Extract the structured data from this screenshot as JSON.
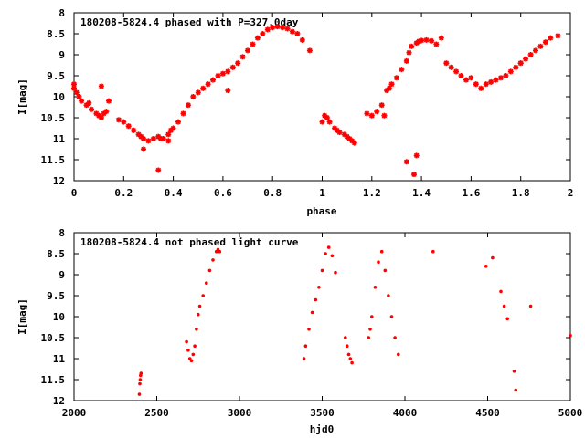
{
  "chart_data": [
    {
      "type": "scatter",
      "title": "180208-5824.4 phased with P=327.0day",
      "xlabel": "phase",
      "ylabel": "I[mag]",
      "xlim": [
        0,
        2
      ],
      "ylim": [
        12,
        8
      ],
      "y_inverted": true,
      "xticks": [
        "0",
        "0.2",
        "0.4",
        "0.6",
        "0.8",
        "1",
        "1.2",
        "1.4",
        "1.6",
        "1.8",
        "2"
      ],
      "yticks": [
        "8",
        "8.5",
        "9",
        "9.5",
        "10",
        "10.5",
        "11",
        "11.5",
        "12"
      ],
      "grid": false,
      "marker": "star",
      "color": "#ff0000",
      "x": [
        0.0,
        0.01,
        0.02,
        0.03,
        0.05,
        0.06,
        0.07,
        0.09,
        0.1,
        0.11,
        0.12,
        0.13,
        0.18,
        0.2,
        0.22,
        0.24,
        0.26,
        0.27,
        0.28,
        0.3,
        0.32,
        0.34,
        0.35,
        0.36,
        0.38,
        0.39,
        0.4,
        0.42,
        0.44,
        0.46,
        0.48,
        0.5,
        0.52,
        0.54,
        0.56,
        0.58,
        0.6,
        0.62,
        0.64,
        0.66,
        0.68,
        0.7,
        0.72,
        0.74,
        0.76,
        0.78,
        0.8,
        0.82,
        0.84,
        0.86,
        0.88,
        0.9,
        0.92,
        0.95,
        1.0,
        1.01,
        1.02,
        1.03,
        1.05,
        1.06,
        1.07,
        1.09,
        1.1,
        1.11,
        1.12,
        1.13,
        1.18,
        1.2,
        1.22,
        1.24,
        1.26,
        1.27,
        1.28,
        1.3,
        1.32,
        1.34,
        1.35,
        1.36,
        1.38,
        1.39,
        1.4,
        1.42,
        1.44,
        1.46,
        1.48,
        1.5,
        1.52,
        1.54,
        1.56,
        1.58,
        1.6,
        1.62,
        1.64,
        1.66,
        1.68,
        1.7,
        1.72,
        1.74,
        1.76,
        1.78,
        1.8,
        1.82,
        1.84,
        1.86,
        1.88,
        1.9,
        1.92,
        1.95,
        0.0,
        0.11,
        0.14,
        0.28,
        0.34,
        0.38,
        0.62,
        1.25,
        1.34,
        1.37,
        1.38,
        1.8
      ],
      "y": [
        9.8,
        9.9,
        10.0,
        10.1,
        10.2,
        10.15,
        10.3,
        10.4,
        10.45,
        10.5,
        10.4,
        10.35,
        10.55,
        10.6,
        10.7,
        10.8,
        10.9,
        10.95,
        11.0,
        11.05,
        11.0,
        10.95,
        11.0,
        11.0,
        10.9,
        10.8,
        10.75,
        10.6,
        10.4,
        10.2,
        10.0,
        9.9,
        9.8,
        9.7,
        9.6,
        9.5,
        9.45,
        9.4,
        9.3,
        9.2,
        9.05,
        8.9,
        8.75,
        8.6,
        8.5,
        8.4,
        8.35,
        8.33,
        8.35,
        8.38,
        8.45,
        8.5,
        8.65,
        8.9,
        10.6,
        10.45,
        10.5,
        10.6,
        10.75,
        10.8,
        10.85,
        10.9,
        10.95,
        11.0,
        11.05,
        11.1,
        10.4,
        10.45,
        10.35,
        10.2,
        9.85,
        9.8,
        9.7,
        9.55,
        9.35,
        9.15,
        8.95,
        8.8,
        8.72,
        8.68,
        8.66,
        8.65,
        8.67,
        8.75,
        8.6,
        9.2,
        9.3,
        9.4,
        9.5,
        9.6,
        9.55,
        9.7,
        9.8,
        9.7,
        9.65,
        9.6,
        9.55,
        9.5,
        9.4,
        9.3,
        9.2,
        9.1,
        9.0,
        8.9,
        8.8,
        8.7,
        8.6,
        8.55,
        9.7,
        9.75,
        10.1,
        11.25,
        11.75,
        11.05,
        9.85,
        10.45,
        11.55,
        11.85,
        11.4,
        9.2
      ]
    },
    {
      "type": "scatter",
      "title": "180208-5824.4 not phased light curve",
      "xlabel": "hjd0",
      "ylabel": "I[mag]",
      "xlim": [
        2000,
        5000
      ],
      "ylim": [
        12,
        8
      ],
      "y_inverted": true,
      "xticks": [
        "2000",
        "2500",
        "3000",
        "3500",
        "4000",
        "4500",
        "5000"
      ],
      "yticks": [
        "8",
        "8.5",
        "9",
        "9.5",
        "10",
        "10.5",
        "11",
        "11.5",
        "12"
      ],
      "grid": false,
      "marker": "dot",
      "color": "#ff0000",
      "x": [
        2395,
        2398,
        2400,
        2402,
        2405,
        2680,
        2690,
        2700,
        2710,
        2720,
        2730,
        2740,
        2750,
        2760,
        2780,
        2800,
        2820,
        2840,
        2860,
        2870,
        2880,
        3390,
        3400,
        3420,
        3440,
        3460,
        3480,
        3500,
        3520,
        3540,
        3560,
        3580,
        3640,
        3650,
        3660,
        3670,
        3680,
        3780,
        3790,
        3800,
        3820,
        3840,
        3860,
        3880,
        3900,
        3920,
        3940,
        3960,
        4170,
        4490,
        4530,
        4580,
        4600,
        4620,
        4660,
        4670,
        4760,
        5000
      ],
      "y": [
        11.85,
        11.6,
        11.5,
        11.4,
        11.35,
        10.6,
        10.8,
        11.0,
        11.05,
        10.9,
        10.7,
        10.3,
        9.95,
        9.75,
        9.5,
        9.2,
        8.9,
        8.65,
        8.45,
        8.4,
        8.45,
        11.0,
        10.7,
        10.3,
        9.9,
        9.6,
        9.3,
        8.9,
        8.5,
        8.35,
        8.55,
        8.95,
        10.5,
        10.7,
        10.9,
        11.0,
        11.1,
        10.5,
        10.3,
        10.0,
        9.3,
        8.7,
        8.45,
        8.9,
        9.5,
        10.0,
        10.5,
        10.9,
        8.45,
        8.8,
        8.6,
        9.4,
        9.75,
        10.05,
        11.3,
        11.75,
        9.75,
        10.45
      ]
    }
  ]
}
